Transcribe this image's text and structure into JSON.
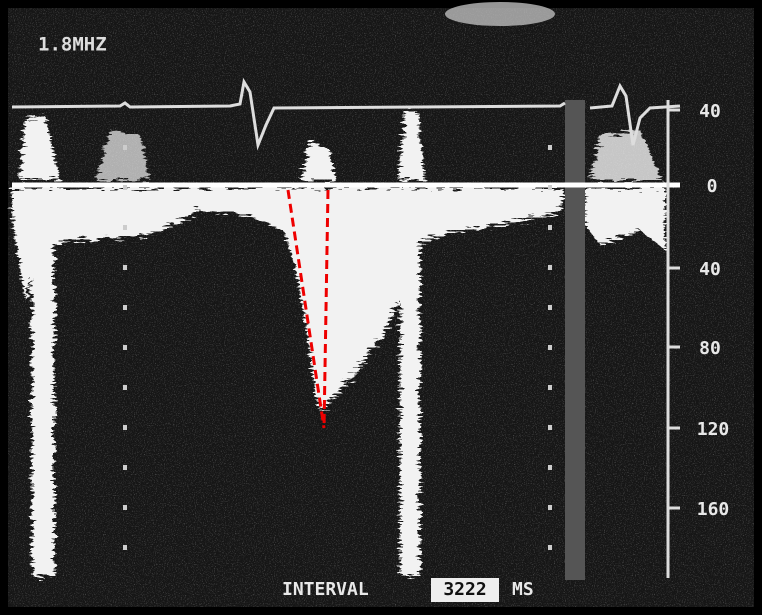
{
  "frequency_label": "1.8MHZ",
  "scale": {
    "labels": [
      "40",
      "0",
      "40",
      "80",
      "120",
      "160"
    ]
  },
  "footer": {
    "prefix": "INTERVAL",
    "value": "3222",
    "unit": "MS"
  }
}
